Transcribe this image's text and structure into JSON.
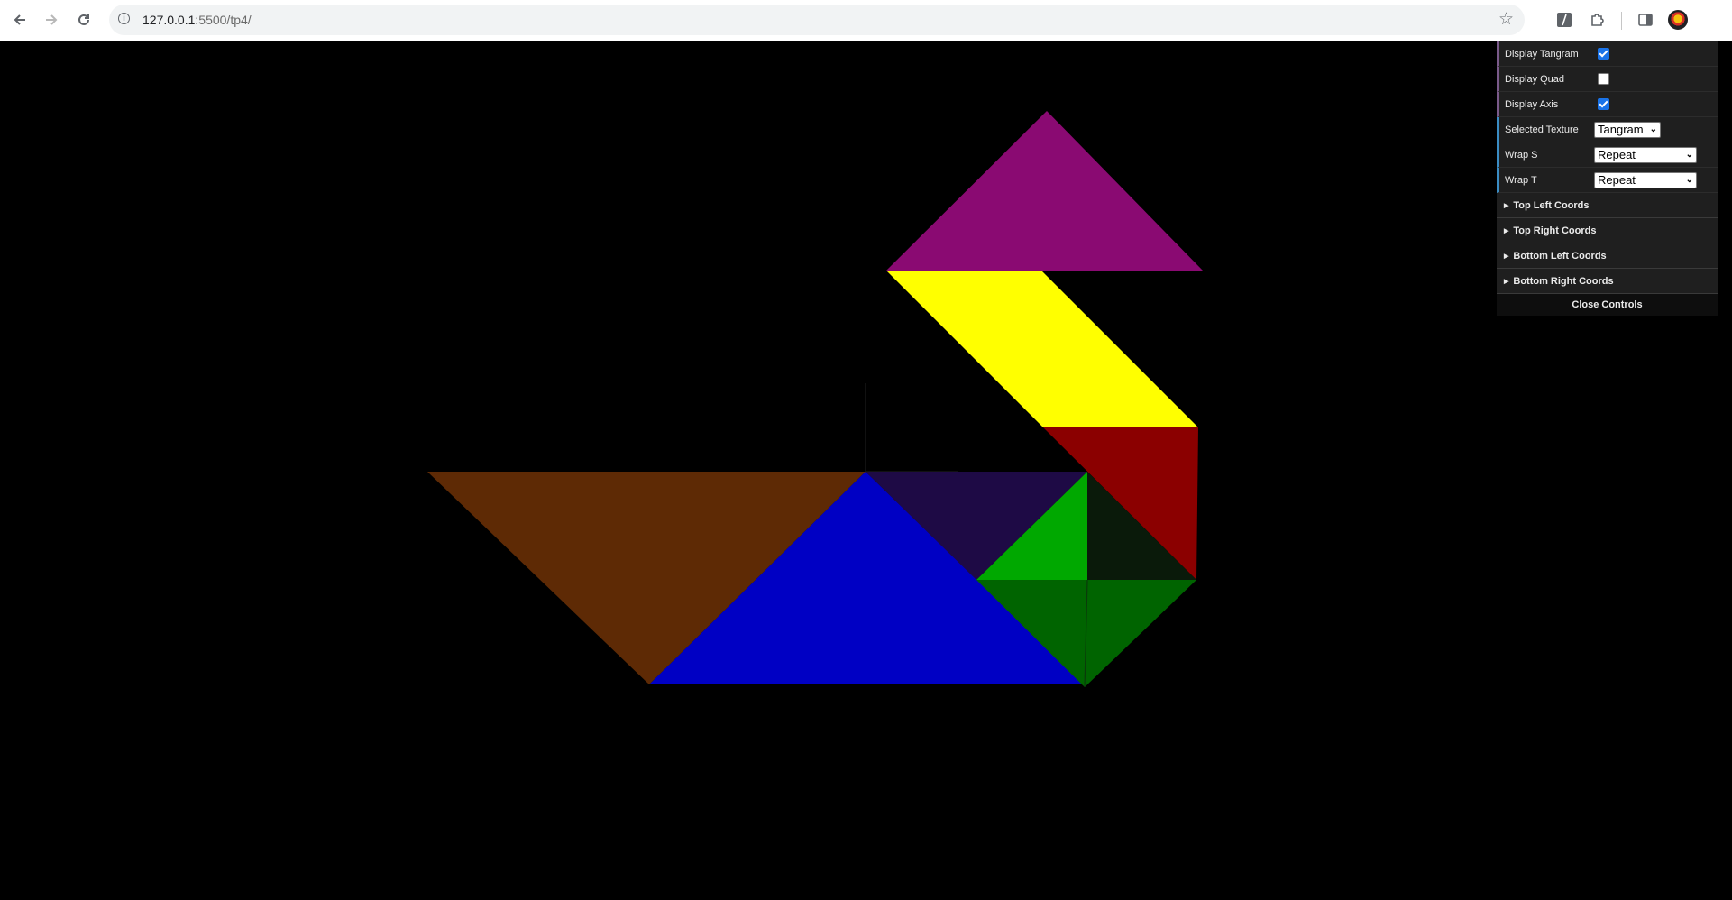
{
  "browser": {
    "back_icon": "arrow-left-icon",
    "forward_icon": "arrow-right-icon",
    "reload_icon": "reload-icon",
    "url_host": "127.0.0.1:",
    "url_path": "5500/tp4/",
    "bookmark_icon": "star-icon",
    "toolbar_icons": [
      "slash-extension-icon",
      "puzzle-extension-icon",
      "side-panel-icon",
      "profile-avatar-icon"
    ]
  },
  "scene": {
    "background": "#000000",
    "pieces": [
      {
        "name": "magenta-triangle",
        "color": "#8a0a72"
      },
      {
        "name": "yellow-parallelogram",
        "color": "#ffff00"
      },
      {
        "name": "red-triangle",
        "color": "#8b0000"
      },
      {
        "name": "brown-triangle",
        "color": "#5e2a05"
      },
      {
        "name": "blue-triangle",
        "color": "#0000c4"
      },
      {
        "name": "indigo-triangle",
        "color": "#1e0a45"
      },
      {
        "name": "bright-green-triangle",
        "color": "#00a800"
      },
      {
        "name": "dark-triangle",
        "color": "#0a1a0a"
      },
      {
        "name": "green-square",
        "color": "#006400"
      }
    ],
    "show_axis": true
  },
  "gui": {
    "display_tangram": {
      "label": "Display Tangram",
      "checked": true
    },
    "display_quad": {
      "label": "Display Quad",
      "checked": false
    },
    "display_axis": {
      "label": "Display Axis",
      "checked": true
    },
    "selected_texture": {
      "label": "Selected Texture",
      "value": "Tangram"
    },
    "wrap_s": {
      "label": "Wrap S",
      "value": "Repeat"
    },
    "wrap_t": {
      "label": "Wrap T",
      "value": "Repeat"
    },
    "folders": [
      "Top Left Coords",
      "Top Right Coords",
      "Bottom Left Coords",
      "Bottom Right Coords"
    ],
    "close_label": "Close Controls"
  }
}
